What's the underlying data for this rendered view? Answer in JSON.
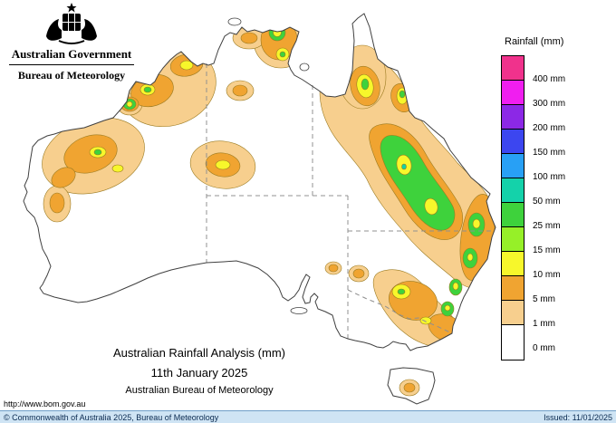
{
  "header": {
    "government": "Australian Government",
    "bureau": "Bureau of Meteorology"
  },
  "legend": {
    "title": "Rainfall (mm)",
    "entries": [
      {
        "label": "400 mm",
        "color": "#f0328c"
      },
      {
        "label": "300 mm",
        "color": "#f01ef0"
      },
      {
        "label": "200 mm",
        "color": "#8c28e6"
      },
      {
        "label": "150 mm",
        "color": "#3c46f0"
      },
      {
        "label": "100 mm",
        "color": "#28a0f5"
      },
      {
        "label": "50 mm",
        "color": "#14d2aa"
      },
      {
        "label": "25 mm",
        "color": "#3ed23c"
      },
      {
        "label": "15 mm",
        "color": "#96f028"
      },
      {
        "label": "10 mm",
        "color": "#f7f72b"
      },
      {
        "label": "5 mm",
        "color": "#f0a431"
      },
      {
        "label": "1 mm",
        "color": "#f7cf8e"
      },
      {
        "label": "0 mm",
        "color": "#ffffff"
      }
    ]
  },
  "map_caption": {
    "line1": "Australian Rainfall Analysis (mm)",
    "line2": "11th January 2025",
    "line3": "Australian Bureau of Meteorology"
  },
  "url": "http://www.bom.gov.au",
  "footer": {
    "copyright": "© Commonwealth of Australia 2025, Bureau of Meteorology",
    "issued": "Issued: 11/01/2025"
  },
  "palette": {
    "contour_tan": "#f7cf8e",
    "contour_orange": "#f0a431",
    "contour_yellow": "#f7f72b",
    "contour_green": "#3ed23c",
    "contour_teal": "#12d2a5",
    "footer_bg": "#cfe4f4"
  }
}
